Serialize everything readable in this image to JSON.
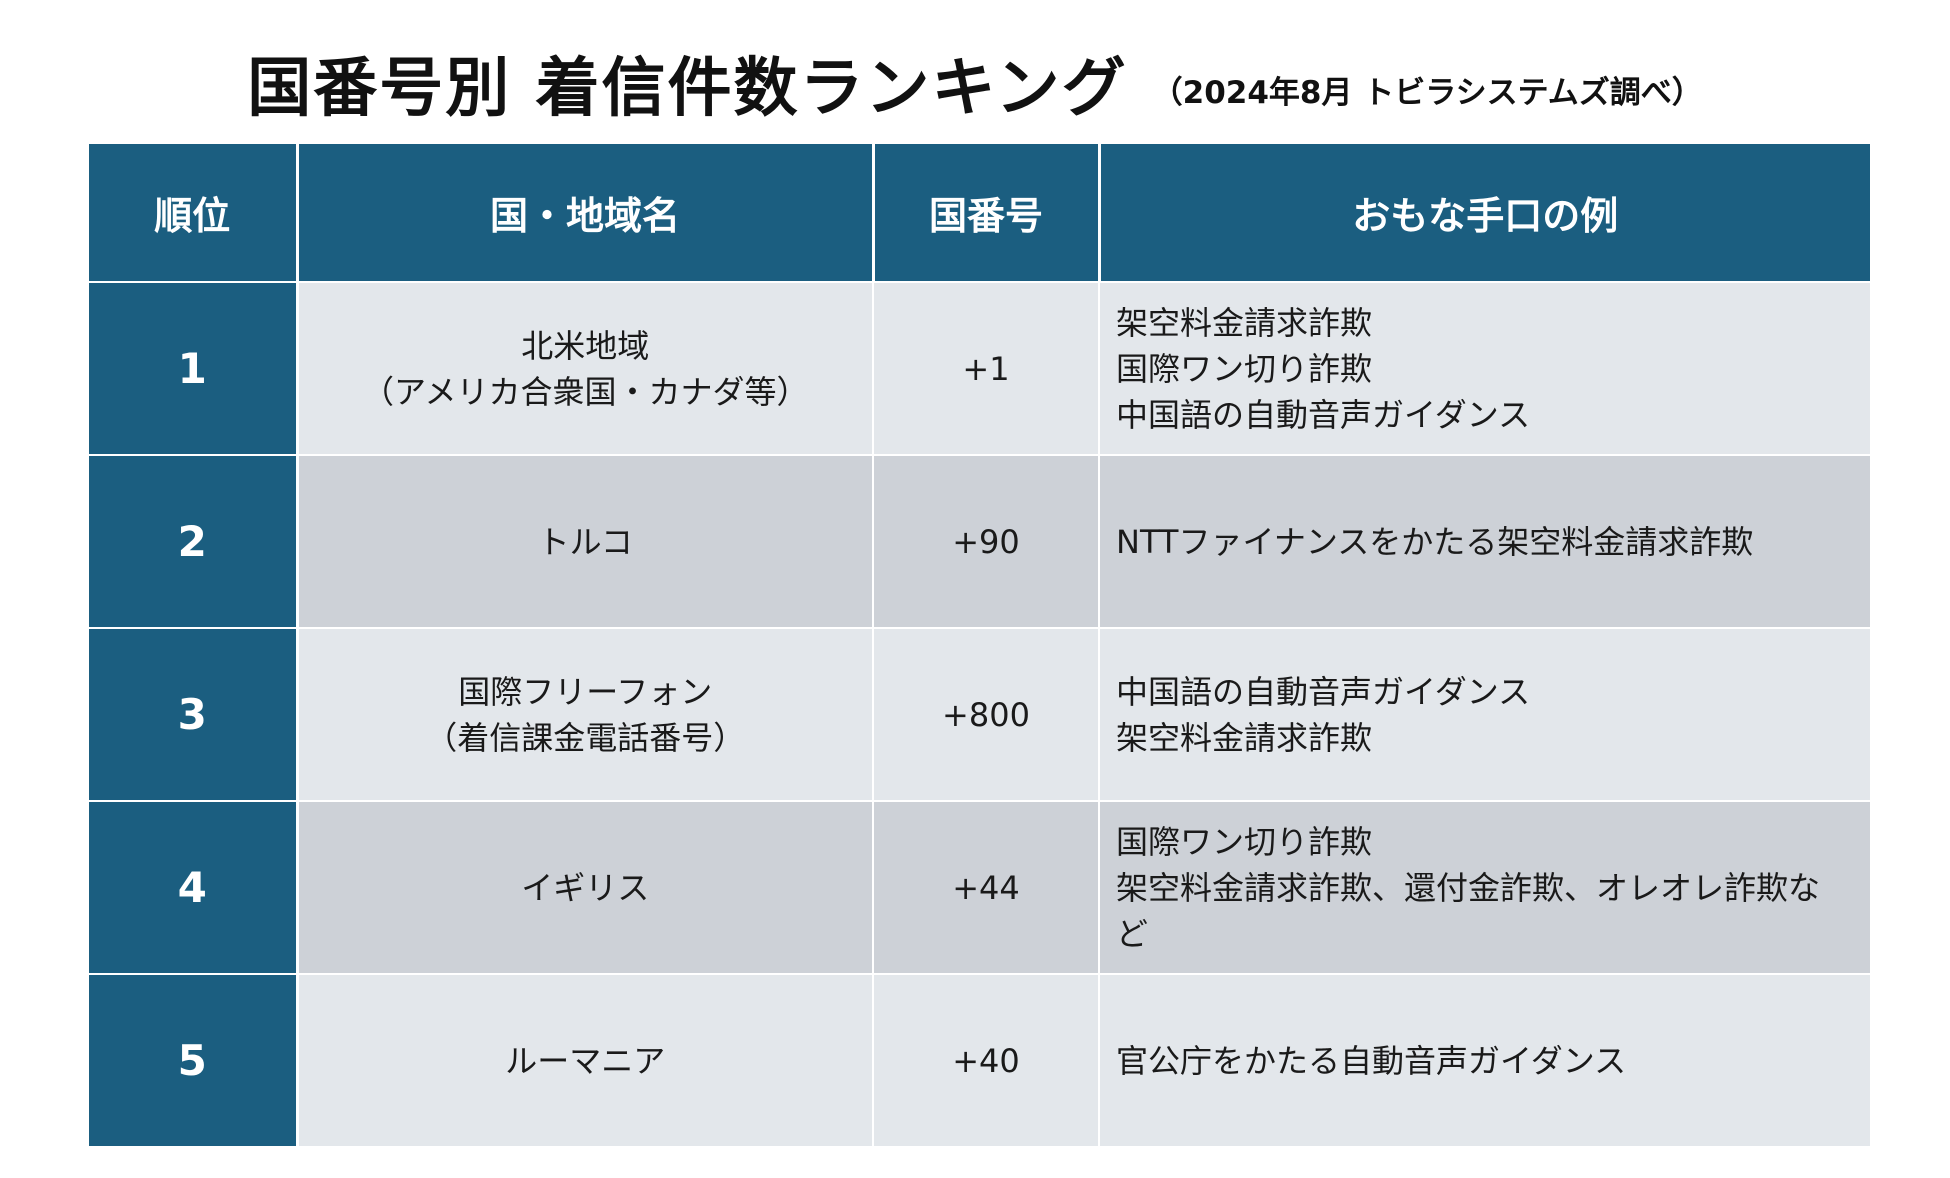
{
  "title": "国番号別 着信件数ランキング",
  "subtitle": "（2024年8月 トビラシステムズ調べ）",
  "table": {
    "headers": {
      "rank": "順位",
      "country": "国・地域名",
      "code": "国番号",
      "methods": "おもな手口の例"
    },
    "rows": [
      {
        "rank": "1",
        "country": [
          "北米地域",
          "（アメリカ合衆国・カナダ等）"
        ],
        "code": "+1",
        "methods": [
          "架空料金請求詐欺",
          "国際ワン切り詐欺",
          "中国語の自動音声ガイダンス"
        ]
      },
      {
        "rank": "2",
        "country": [
          "トルコ"
        ],
        "code": "+90",
        "methods": [
          "NTTファイナンスをかたる架空料金請求詐欺"
        ]
      },
      {
        "rank": "3",
        "country": [
          "国際フリーフォン",
          "（着信課金電話番号）"
        ],
        "code": "+800",
        "methods": [
          "中国語の自動音声ガイダンス",
          "架空料金請求詐欺"
        ]
      },
      {
        "rank": "4",
        "country": [
          "イギリス"
        ],
        "code": "+44",
        "methods": [
          "国際ワン切り詐欺",
          "架空料金請求詐欺、還付金詐欺、オレオレ詐欺な",
          "ど"
        ]
      },
      {
        "rank": "5",
        "country": [
          "ルーマニア"
        ],
        "code": "+40",
        "methods": [
          "官公庁をかたる自動音声ガイダンス"
        ]
      }
    ]
  }
}
